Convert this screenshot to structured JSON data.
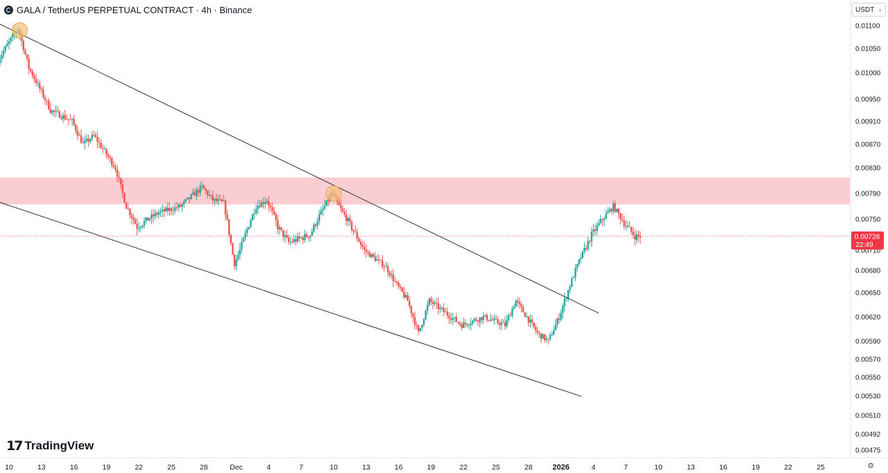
{
  "header": {
    "title": "GALA / TetherUS PERPETUAL CONTRACT · 4h · Binance",
    "symbol_icon": "gala-coin-icon"
  },
  "currency_selector": {
    "value": "USDT",
    "icon": "chevron-down-icon"
  },
  "branding": {
    "logo_mark": "17",
    "logo_text": "TradingView"
  },
  "settings_icon": "gear-icon",
  "colors": {
    "up": "#26a69a",
    "down": "#ef5350",
    "zone": "#f9c4ca",
    "trendline": "#2a2e39",
    "highlight": "#f5c07a",
    "price_label": "#f23645"
  },
  "chart_data": {
    "type": "candlestick",
    "timeframe": "4h",
    "title": "GALA / TetherUS PERPETUAL CONTRACT · 4h · Binance",
    "y_axis": {
      "ticks": [
        "0.01100",
        "0.01050",
        "0.01000",
        "0.00950",
        "0.00910",
        "0.00870",
        "0.00830",
        "0.00790",
        "0.00750",
        "0.00710",
        "0.00680",
        "0.00650",
        "0.00620",
        "0.00590",
        "0.00570",
        "0.00550",
        "0.00530",
        "0.00510",
        "0.00492",
        "0.00475"
      ],
      "ylim": [
        0.00468,
        0.01115
      ],
      "scale": "log"
    },
    "x_axis": {
      "ticks": [
        "10",
        "13",
        "16",
        "19",
        "22",
        "25",
        "28",
        "Dec",
        "4",
        "7",
        "10",
        "13",
        "16",
        "19",
        "22",
        "25",
        "28",
        "2026",
        "4",
        "7",
        "10",
        "13",
        "16",
        "19",
        "22",
        "25"
      ],
      "bold": [
        "2026"
      ]
    },
    "candle_x_range": [
      "Nov 9, 2025",
      "Jan 7, 2026"
    ],
    "ohlc_keypoints": [
      [
        "Nov 9",
        0.0102
      ],
      [
        "Nov 11",
        0.01095
      ],
      [
        "Nov 12",
        0.0101
      ],
      [
        "Nov 13",
        0.0097
      ],
      [
        "Nov 14",
        0.0093
      ],
      [
        "Nov 16",
        0.0091
      ],
      [
        "Nov 17",
        0.0087
      ],
      [
        "Nov 18",
        0.00885
      ],
      [
        "Nov 20",
        0.0083
      ],
      [
        "Nov 21",
        0.0077
      ],
      [
        "Nov 22",
        0.0074
      ],
      [
        "Nov 24",
        0.0076
      ],
      [
        "Nov 26",
        0.0077
      ],
      [
        "Nov 28",
        0.008
      ],
      [
        "Nov 29",
        0.0078
      ],
      [
        "Nov 30",
        0.00775
      ],
      [
        "Dec 1",
        0.0069
      ],
      [
        "Dec 2",
        0.0073
      ],
      [
        "Dec 3",
        0.0077
      ],
      [
        "Dec 4",
        0.0078
      ],
      [
        "Dec 5",
        0.0074
      ],
      [
        "Dec 6",
        0.0072
      ],
      [
        "Dec 8",
        0.0073
      ],
      [
        "Dec 9",
        0.0076
      ],
      [
        "Dec 10",
        0.0079
      ],
      [
        "Dec 11",
        0.0076
      ],
      [
        "Dec 12",
        0.00735
      ],
      [
        "Dec 13",
        0.0071
      ],
      [
        "Dec 15",
        0.00685
      ],
      [
        "Dec 16",
        0.0066
      ],
      [
        "Dec 17",
        0.0064
      ],
      [
        "Dec 18",
        0.006
      ],
      [
        "Dec 19",
        0.0064
      ],
      [
        "Dec 20",
        0.0063
      ],
      [
        "Dec 22",
        0.0061
      ],
      [
        "Dec 24",
        0.0062
      ],
      [
        "Dec 26",
        0.0061
      ],
      [
        "Dec 27",
        0.0064
      ],
      [
        "Dec 29",
        0.006
      ],
      [
        "Dec 30",
        0.0059
      ],
      [
        "Dec 31",
        0.0062
      ],
      [
        "Jan 1",
        0.0066
      ],
      [
        "Jan 2",
        0.007
      ],
      [
        "Jan 3",
        0.0073
      ],
      [
        "Jan 4",
        0.0075
      ],
      [
        "Jan 5",
        0.0077
      ],
      [
        "Jan 6",
        0.00745
      ],
      [
        "Jan 7",
        0.00728
      ]
    ],
    "current_price": {
      "value": "0.00728",
      "countdown": "22:49"
    },
    "resistance_zone": {
      "from": 0.00773,
      "to": 0.00815
    },
    "annotations": [
      {
        "type": "upper_trendline",
        "from": [
          "Nov 9",
          0.01105
        ],
        "to": [
          "Jan 5",
          0.00615
        ]
      },
      {
        "type": "lower_trendline",
        "from": [
          "Nov 9",
          0.00777
        ],
        "to": [
          "Jan 5",
          0.00518
        ]
      },
      {
        "type": "touch_marker",
        "at": [
          "Nov 11",
          0.0109
        ]
      },
      {
        "type": "touch_marker",
        "at": [
          "Dec 10",
          0.0079
        ]
      }
    ]
  }
}
